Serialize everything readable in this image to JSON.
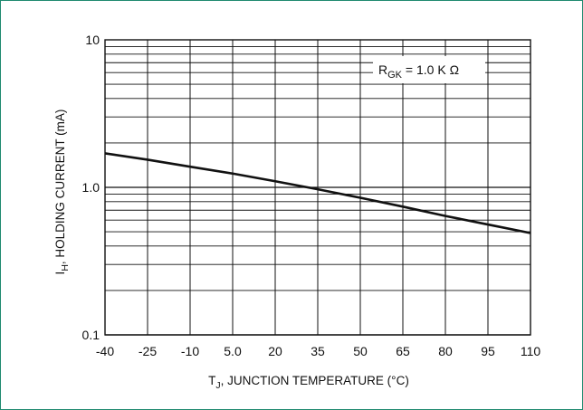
{
  "chart_data": {
    "type": "line",
    "x_scale": "linear",
    "y_scale": "log",
    "xlim": [
      -40,
      110
    ],
    "ylim": [
      0.1,
      10
    ],
    "grid": true,
    "x_ticks": [
      -40,
      -25,
      -10,
      5,
      20,
      35,
      50,
      65,
      80,
      95,
      110
    ],
    "x_tick_labels": [
      "-40",
      "-25",
      "-10",
      "5.0",
      "20",
      "35",
      "50",
      "65",
      "80",
      "95",
      "110"
    ],
    "y_ticks": [
      0.1,
      1,
      10
    ],
    "y_tick_labels": [
      "0.1",
      "1.0",
      "10"
    ],
    "series": [
      {
        "x": [
          -40,
          -25,
          -10,
          5,
          20,
          35,
          50,
          65,
          80,
          95,
          110
        ],
        "y": [
          1.7,
          1.54,
          1.38,
          1.24,
          1.1,
          0.97,
          0.85,
          0.74,
          0.64,
          0.56,
          0.49
        ],
        "color": "#111111"
      }
    ],
    "ylabel_parts": {
      "symbol": "I",
      "subscript": "H",
      "text": ", HOLDING CURRENT (mA)"
    },
    "xlabel_parts": {
      "symbol": "T",
      "subscript": "J",
      "text": ", JUNCTION TEMPERATURE (°C)"
    },
    "annotation": {
      "symbol": "R",
      "subscript": "GK",
      "text": " = 1.0 K Ω"
    }
  },
  "colors": {
    "frame": "#1f8a70",
    "grid": "#111111",
    "curve": "#111111",
    "background": "#ffffff"
  }
}
